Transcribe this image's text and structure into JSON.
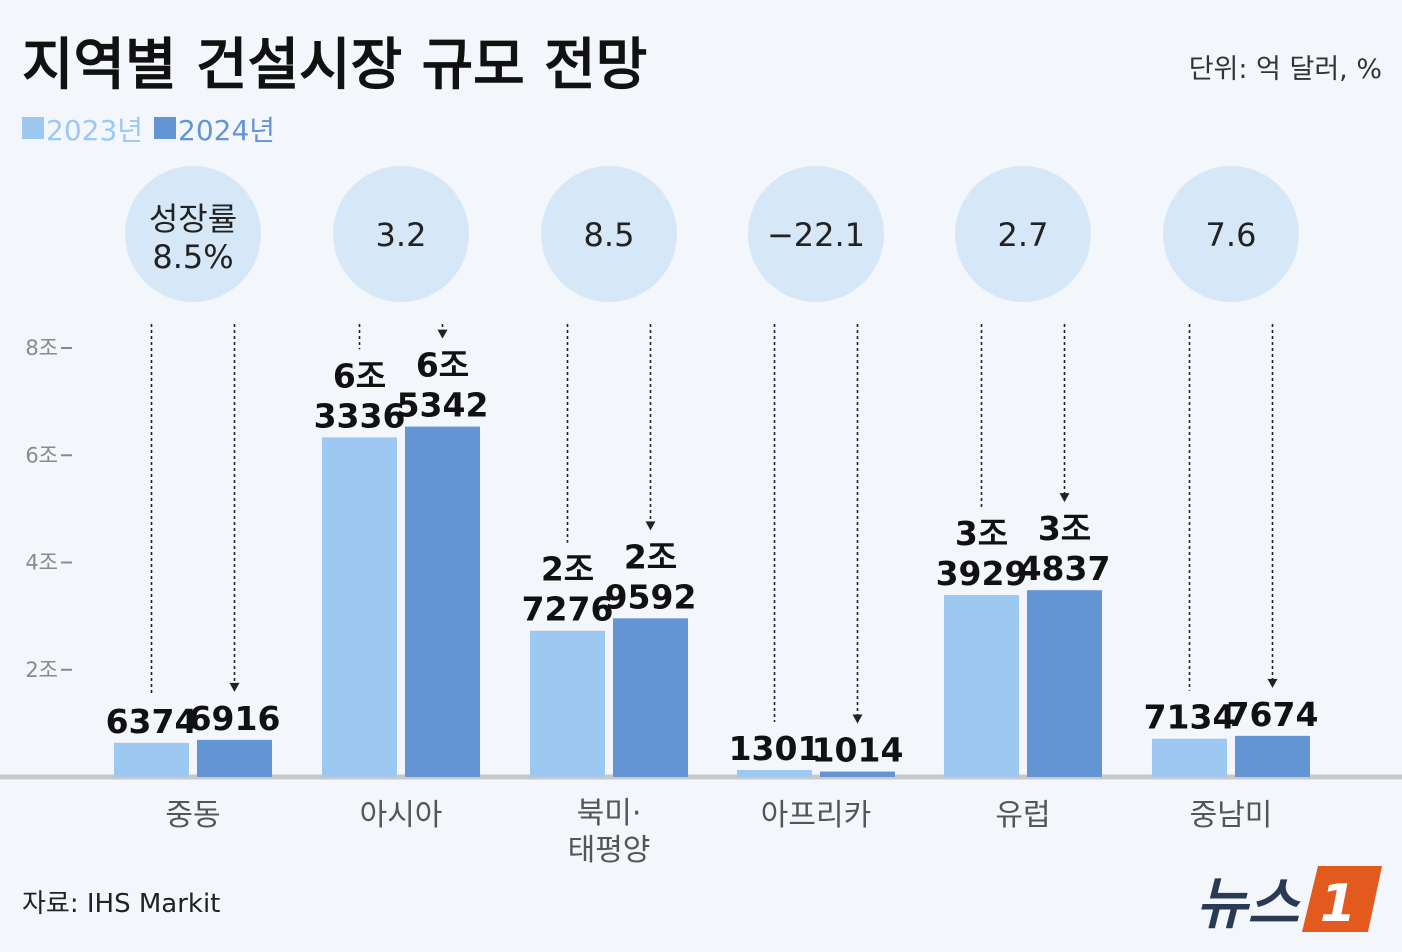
{
  "header": {
    "title": "지역별 건설시장 규모 전망",
    "unit": "단위: 억 달러, %"
  },
  "source": "자료: IHS Markit",
  "brand": {
    "text": "뉴스",
    "mark": "1"
  },
  "colors": {
    "y2023": "#9dc8f1",
    "y2024": "#6395d4",
    "circle": "#d6e8f8",
    "background": "#f3f6fa",
    "brand_accent": "#e35a1f"
  },
  "chart_data": {
    "type": "bar",
    "title": "지역별 건설시장 규모 전망",
    "categories": [
      "중동",
      "아시아",
      "북미·\n태평양",
      "아프리카",
      "유럽",
      "중남미"
    ],
    "series": [
      {
        "name": "2023년",
        "values": [
          6374,
          63336,
          27276,
          1301,
          33929,
          7134
        ],
        "labels": [
          "6374",
          "6조\n3336",
          "2조\n7276",
          "1301",
          "3조\n3929",
          "7134"
        ]
      },
      {
        "name": "2024년",
        "values": [
          6916,
          65342,
          29592,
          1014,
          34837,
          7674
        ],
        "labels": [
          "6916",
          "6조\n5342",
          "2조\n9592",
          "1014",
          "3조\n4837",
          "7674"
        ]
      }
    ],
    "growth_rates": [
      "성장률\n8.5%",
      "3.2",
      "8.5",
      "−22.1",
      "2.7",
      "7.6"
    ],
    "y_ticks": [
      {
        "value": 20000,
        "label": "2조"
      },
      {
        "value": 40000,
        "label": "4조"
      },
      {
        "value": 60000,
        "label": "6조"
      },
      {
        "value": 80000,
        "label": "8조"
      }
    ],
    "ylim": [
      0,
      80000
    ],
    "legend_position": "top-left",
    "grid": false
  }
}
